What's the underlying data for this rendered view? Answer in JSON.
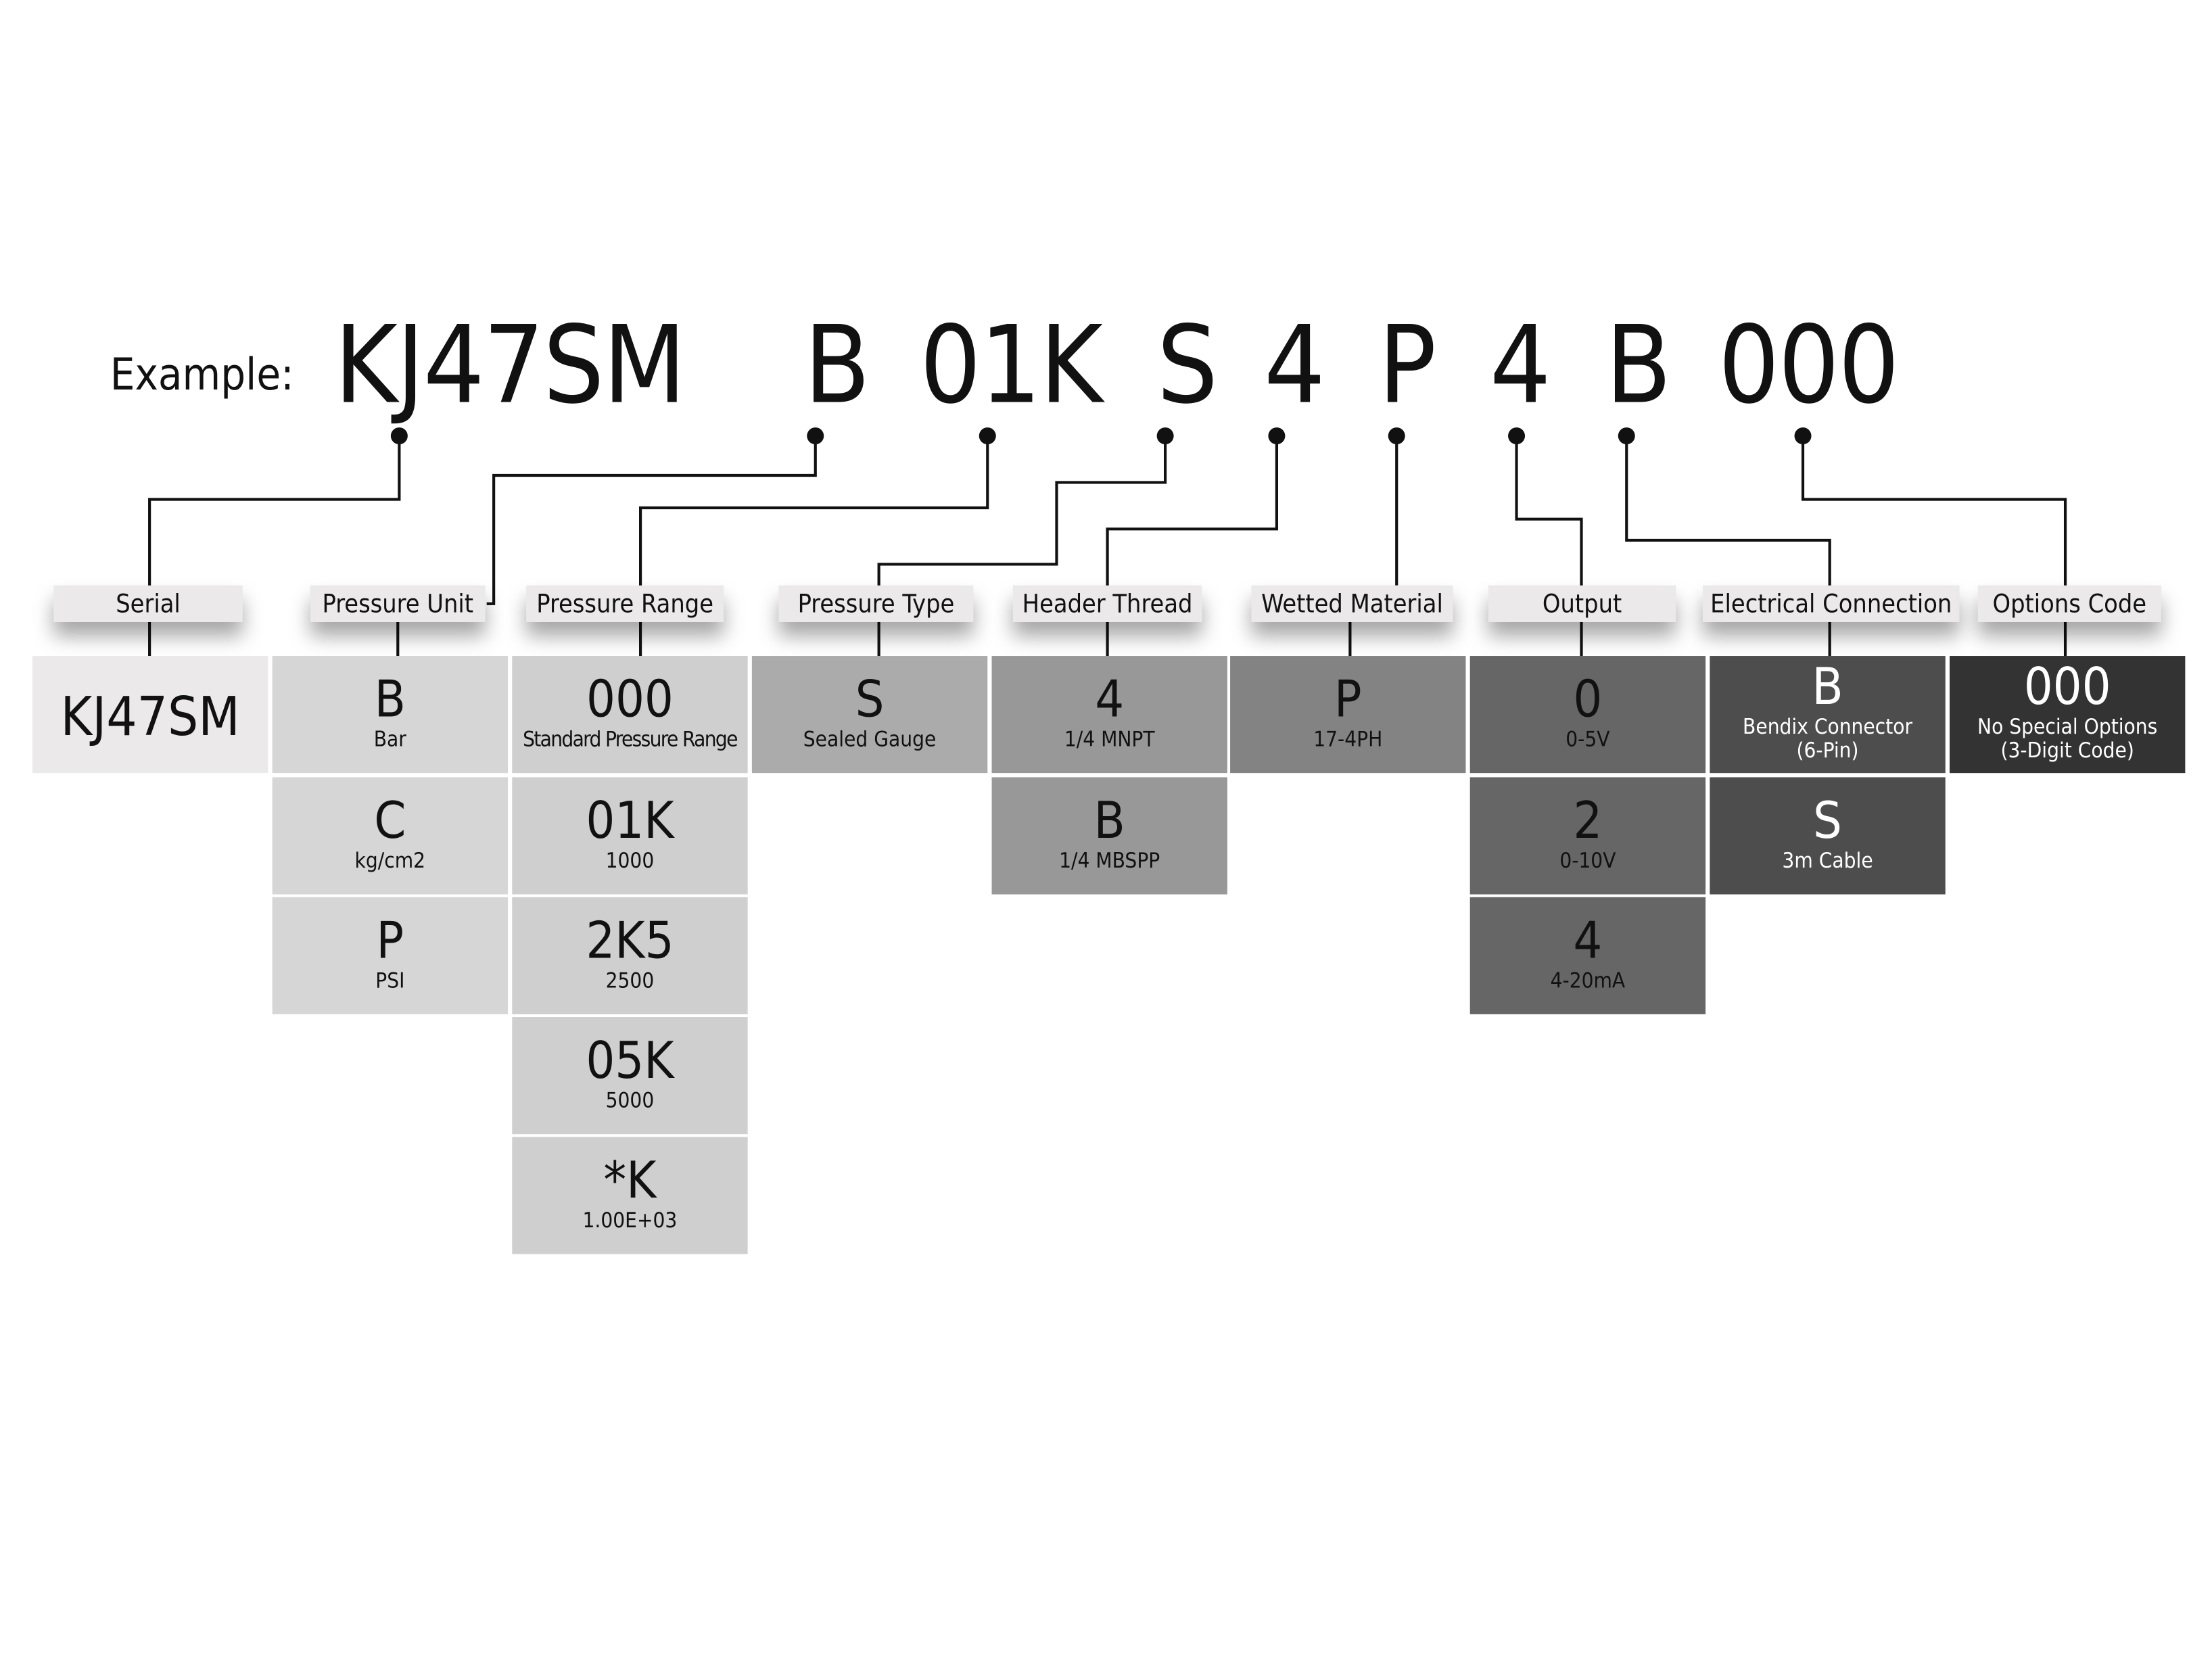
{
  "example": {
    "label": "Example:",
    "segments": [
      "KJ47SM",
      "B",
      "01K",
      "S",
      "4",
      "P",
      "4",
      "B",
      "000"
    ]
  },
  "columns": [
    {
      "label": "Serial",
      "color": "#ebe9ea",
      "text_color": "#111111",
      "options": [
        {
          "code": "KJ47SM",
          "desc": ""
        }
      ]
    },
    {
      "label": "Pressure Unit",
      "color": "#d6d6d6",
      "text_color": "#111111",
      "options": [
        {
          "code": "B",
          "desc": "Bar"
        },
        {
          "code": "C",
          "desc": "kg/cm2"
        },
        {
          "code": "P",
          "desc": "PSI"
        }
      ]
    },
    {
      "label": "Pressure Range",
      "color": "#cfcfcf",
      "text_color": "#111111",
      "options": [
        {
          "code": "000",
          "desc": "Standard Pressure Range"
        },
        {
          "code": "01K",
          "desc": "1000"
        },
        {
          "code": "2K5",
          "desc": "2500"
        },
        {
          "code": "05K",
          "desc": "5000"
        },
        {
          "code": "*K",
          "desc": "1.00E+03"
        }
      ]
    },
    {
      "label": "Pressure Type",
      "color": "#ababab",
      "text_color": "#111111",
      "options": [
        {
          "code": "S",
          "desc": "Sealed Gauge"
        }
      ]
    },
    {
      "label": "Header Thread",
      "color": "#989898",
      "text_color": "#111111",
      "options": [
        {
          "code": "4",
          "desc": "1/4 MNPT"
        },
        {
          "code": "B",
          "desc": "1/4 MBSPP"
        }
      ]
    },
    {
      "label": "Wetted Material",
      "color": "#838383",
      "text_color": "#111111",
      "options": [
        {
          "code": "P",
          "desc": "17-4PH"
        }
      ]
    },
    {
      "label": "Output",
      "color": "#666666",
      "text_color": "#111111",
      "options": [
        {
          "code": "0",
          "desc": "0-5V"
        },
        {
          "code": "2",
          "desc": "0-10V"
        },
        {
          "code": "4",
          "desc": "4-20mA"
        }
      ]
    },
    {
      "label": "Electrical Connection",
      "color": "#4d4d4d",
      "text_color": "#ffffff",
      "options": [
        {
          "code": "B",
          "desc": "Bendix Connector\n(6-Pin)"
        },
        {
          "code": "S",
          "desc": "3m Cable"
        }
      ]
    },
    {
      "label": "Options Code",
      "color": "#333333",
      "text_color": "#ffffff",
      "options": [
        {
          "code": "000",
          "desc": "No Special Options\n(3-Digit Code)"
        }
      ]
    }
  ]
}
